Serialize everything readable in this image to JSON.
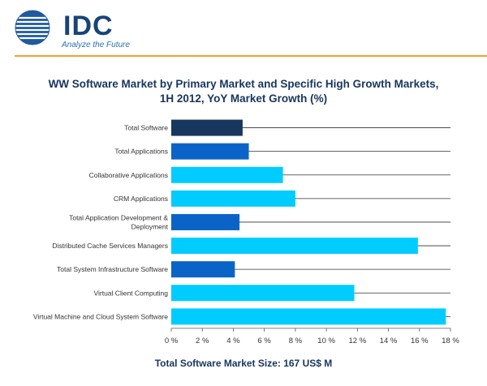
{
  "header": {
    "logo_text": "IDC",
    "tagline": "Analyze the Future"
  },
  "colors": {
    "dark_navy": "#17375e",
    "medium_blue": "#0a64c8",
    "light_cyan": "#00ccff",
    "rule": "#f0a030"
  },
  "chart_data": {
    "type": "bar",
    "orientation": "horizontal",
    "title": [
      "WW Software Market by Primary Market and Specific High Growth Markets,",
      "1H 2012, YoY Market Growth (%)"
    ],
    "categories": [
      [
        "Total Software"
      ],
      [
        "Total Applications"
      ],
      [
        "Collaborative Applications"
      ],
      [
        "CRM Applications"
      ],
      [
        "Total Application Development &",
        "Deployment"
      ],
      [
        "Distributed Cache Services Managers"
      ],
      [
        "Total System Infrastructure Software"
      ],
      [
        "Virtual Client Computing"
      ],
      [
        "Virtual Machine and Cloud System Software"
      ]
    ],
    "values": [
      4.6,
      5.0,
      7.2,
      8.0,
      4.4,
      15.9,
      4.1,
      11.8,
      17.7
    ],
    "bar_colors": [
      "#17375e",
      "#0a64c8",
      "#00ccff",
      "#00ccff",
      "#0a64c8",
      "#00ccff",
      "#0a64c8",
      "#00ccff",
      "#00ccff"
    ],
    "xlim": [
      0,
      18
    ],
    "x_ticks": [
      0,
      2,
      4,
      6,
      8,
      10,
      12,
      14,
      16,
      18
    ],
    "x_tick_labels": [
      "0 %",
      "2 %",
      "4 %",
      "6 %",
      "8 %",
      "10 %",
      "12 %",
      "14 %",
      "16 %",
      "18 %"
    ],
    "xlabel": "",
    "ylabel": "",
    "grid": "horizontal lines at each category"
  },
  "footer_note": "Total Software Market Size: 167 US$ M"
}
